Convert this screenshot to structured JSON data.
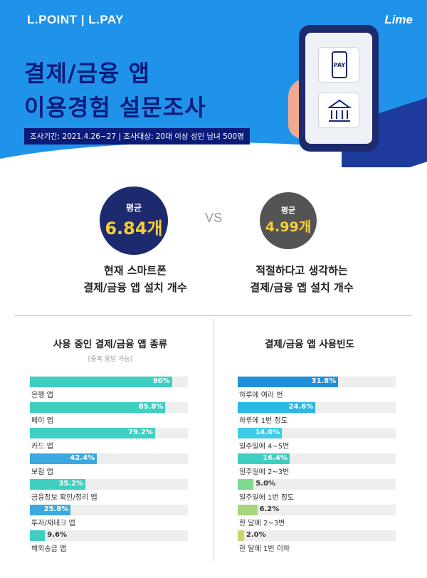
{
  "header": {
    "brand_left": "L.POINT | L.PAY",
    "brand_right": "Lime",
    "title_line1": "결제/금융 앱",
    "title_line2": "이용경험 설문조사",
    "survey_info": "조사기간: 2021.4.26~27  |  조사대상: 20대 이상 성인 남녀 500명",
    "phone_pay_label": "PAY",
    "colors": {
      "background": "#1f93ea",
      "title": "#0b1b7a"
    }
  },
  "comparison": {
    "left": {
      "label": "평균",
      "value": "6.84개",
      "desc_line1": "현재 스마트폰",
      "desc_line2": "결제/금융 앱 설치 개수"
    },
    "vs": "VS",
    "right": {
      "label": "평균",
      "value": "4.99개",
      "desc_line1": "적절하다고 생각하는",
      "desc_line2": "결제/금융 앱 설치 개수"
    }
  },
  "chart_data": [
    {
      "type": "bar",
      "title": "사용 중인 결제/금융 앱 종류",
      "subtitle": "[중복 응답 가능]",
      "categories": [
        "은행 앱",
        "페이 앱",
        "카드 앱",
        "보험 앱",
        "금융정보 확인/정리 앱",
        "투자/재테크 앱",
        "해외송금 앱"
      ],
      "values": [
        90,
        85.8,
        79.2,
        42.4,
        35.2,
        25.8,
        9.6
      ],
      "value_labels": [
        "90%",
        "85.8%",
        "79.2%",
        "42.4%",
        "35.2%",
        "25.8%",
        "9.6%"
      ],
      "colors": [
        "#3ecfc0",
        "#3ecfc0",
        "#3ecfc0",
        "#3aa9e0",
        "#3ecfc0",
        "#3aa9e0",
        "#3ecfc0"
      ],
      "xlim": [
        0,
        100
      ]
    },
    {
      "type": "bar",
      "title": "결제/금융 앱 사용빈도",
      "categories": [
        "하루에 여러 번",
        "하루에 1번 정도",
        "일주일에 4~5번",
        "일주일에 2~3번",
        "일주일에 1번 정도",
        "한 달에 2~3번",
        "한 달에 1번 이하"
      ],
      "values": [
        31.8,
        24.6,
        14.0,
        16.4,
        5.0,
        6.2,
        2.0
      ],
      "value_labels": [
        "31.8%",
        "24.6%",
        "14.0%",
        "16.4%",
        "5.0%",
        "6.2%",
        "2.0%"
      ],
      "colors": [
        "#1f8fd9",
        "#2ab8e6",
        "#3ecbe8",
        "#3ecfc0",
        "#7ed88e",
        "#a8d67a",
        "#cfd36b"
      ],
      "xlim": [
        0,
        50
      ]
    }
  ]
}
